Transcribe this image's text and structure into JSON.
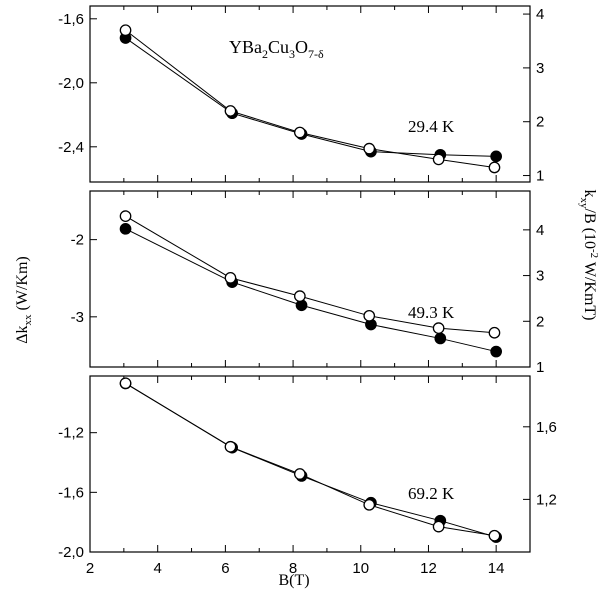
{
  "figure": {
    "compound_text": {
      "main": "YBa",
      "s1": "2",
      "m2": "Cu",
      "s2": "3",
      "m3": "O",
      "s3": "7-δ"
    },
    "xlabel": "B(T)",
    "ylabel_left": {
      "main": "Δk",
      "sub": "xx",
      "unit": " (W/Km)"
    },
    "ylabel_right": {
      "a": "k",
      "asub": "xy",
      "b": "/B (10",
      "bsup": "-2",
      "c": " W/KmT)"
    }
  },
  "chart_data": [
    {
      "type": "scatter",
      "annotation": "29.4 K",
      "x_ticks": [
        "2",
        "4",
        "6",
        "8",
        "10",
        "12",
        "14"
      ],
      "xlim": [
        2,
        15
      ],
      "ylim_left": [
        -2.62,
        -1.52
      ],
      "yticks_left": [
        "-1,6",
        "-2,0",
        "-2,4"
      ],
      "ylim_right": [
        0.88,
        4.15
      ],
      "yticks_right": [
        "1",
        "2",
        "3",
        "4"
      ],
      "series": [
        {
          "axis": "left",
          "marker": "filled",
          "x": [
            3.05,
            6.2,
            8.25,
            10.3,
            12.35,
            14.0
          ],
          "y": [
            -1.72,
            -2.19,
            -2.32,
            -2.43,
            -2.45,
            -2.46
          ]
        },
        {
          "axis": "right",
          "marker": "open",
          "x": [
            3.05,
            6.15,
            8.2,
            10.25,
            12.3,
            13.95
          ],
          "y": [
            3.7,
            2.2,
            1.8,
            1.5,
            1.3,
            1.15
          ]
        }
      ]
    },
    {
      "type": "scatter",
      "annotation": "49.3 K",
      "x_ticks": [
        "2",
        "4",
        "6",
        "8",
        "10",
        "12",
        "14"
      ],
      "xlim": [
        2,
        15
      ],
      "ylim_left": [
        -3.65,
        -1.37
      ],
      "yticks_left": [
        "-2",
        "-3"
      ],
      "ylim_right": [
        1.0,
        4.85
      ],
      "yticks_right": [
        "1",
        "2",
        "3",
        "4"
      ],
      "series": [
        {
          "axis": "left",
          "marker": "filled",
          "x": [
            3.05,
            6.2,
            8.25,
            10.3,
            12.35,
            14.0
          ],
          "y": [
            -1.86,
            -2.55,
            -2.85,
            -3.1,
            -3.28,
            -3.45
          ]
        },
        {
          "axis": "right",
          "marker": "open",
          "x": [
            3.05,
            6.15,
            8.2,
            10.25,
            12.3,
            13.95
          ],
          "y": [
            4.3,
            2.95,
            2.55,
            2.12,
            1.85,
            1.75
          ]
        }
      ]
    },
    {
      "type": "scatter",
      "annotation": "69.2 K",
      "x_ticks": [
        "2",
        "4",
        "6",
        "8",
        "10",
        "12",
        "14"
      ],
      "xlim": [
        2,
        15
      ],
      "ylim_left": [
        -2.0,
        -0.82
      ],
      "yticks_left": [
        "-1,2",
        "-1,6",
        "-2,0"
      ],
      "ylim_right": [
        0.91,
        1.88
      ],
      "yticks_right": [
        "1,2",
        "1,6"
      ],
      "series": [
        {
          "axis": "left",
          "marker": "filled",
          "x": [
            3.05,
            6.2,
            8.25,
            10.3,
            12.35,
            14.0
          ],
          "y": [
            -0.87,
            -1.3,
            -1.49,
            -1.67,
            -1.79,
            -1.9
          ]
        },
        {
          "axis": "right",
          "marker": "open",
          "x": [
            3.05,
            6.15,
            8.2,
            10.25,
            12.3,
            13.95
          ],
          "y": [
            1.84,
            1.49,
            1.34,
            1.17,
            1.05,
            1.0
          ]
        }
      ]
    }
  ]
}
